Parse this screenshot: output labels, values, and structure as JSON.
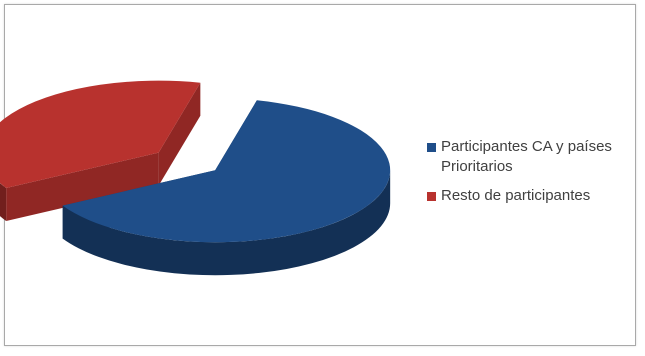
{
  "chart_data": {
    "type": "pie",
    "title": "",
    "style": "3d-exploded",
    "legend_position": "right",
    "slices": [
      {
        "label": "Participantes CA y países\nPrioritarios",
        "value": 63,
        "color": "#1f4e89"
      },
      {
        "label": "Resto de participantes",
        "value": 37,
        "color": "#b8322e"
      }
    ]
  }
}
